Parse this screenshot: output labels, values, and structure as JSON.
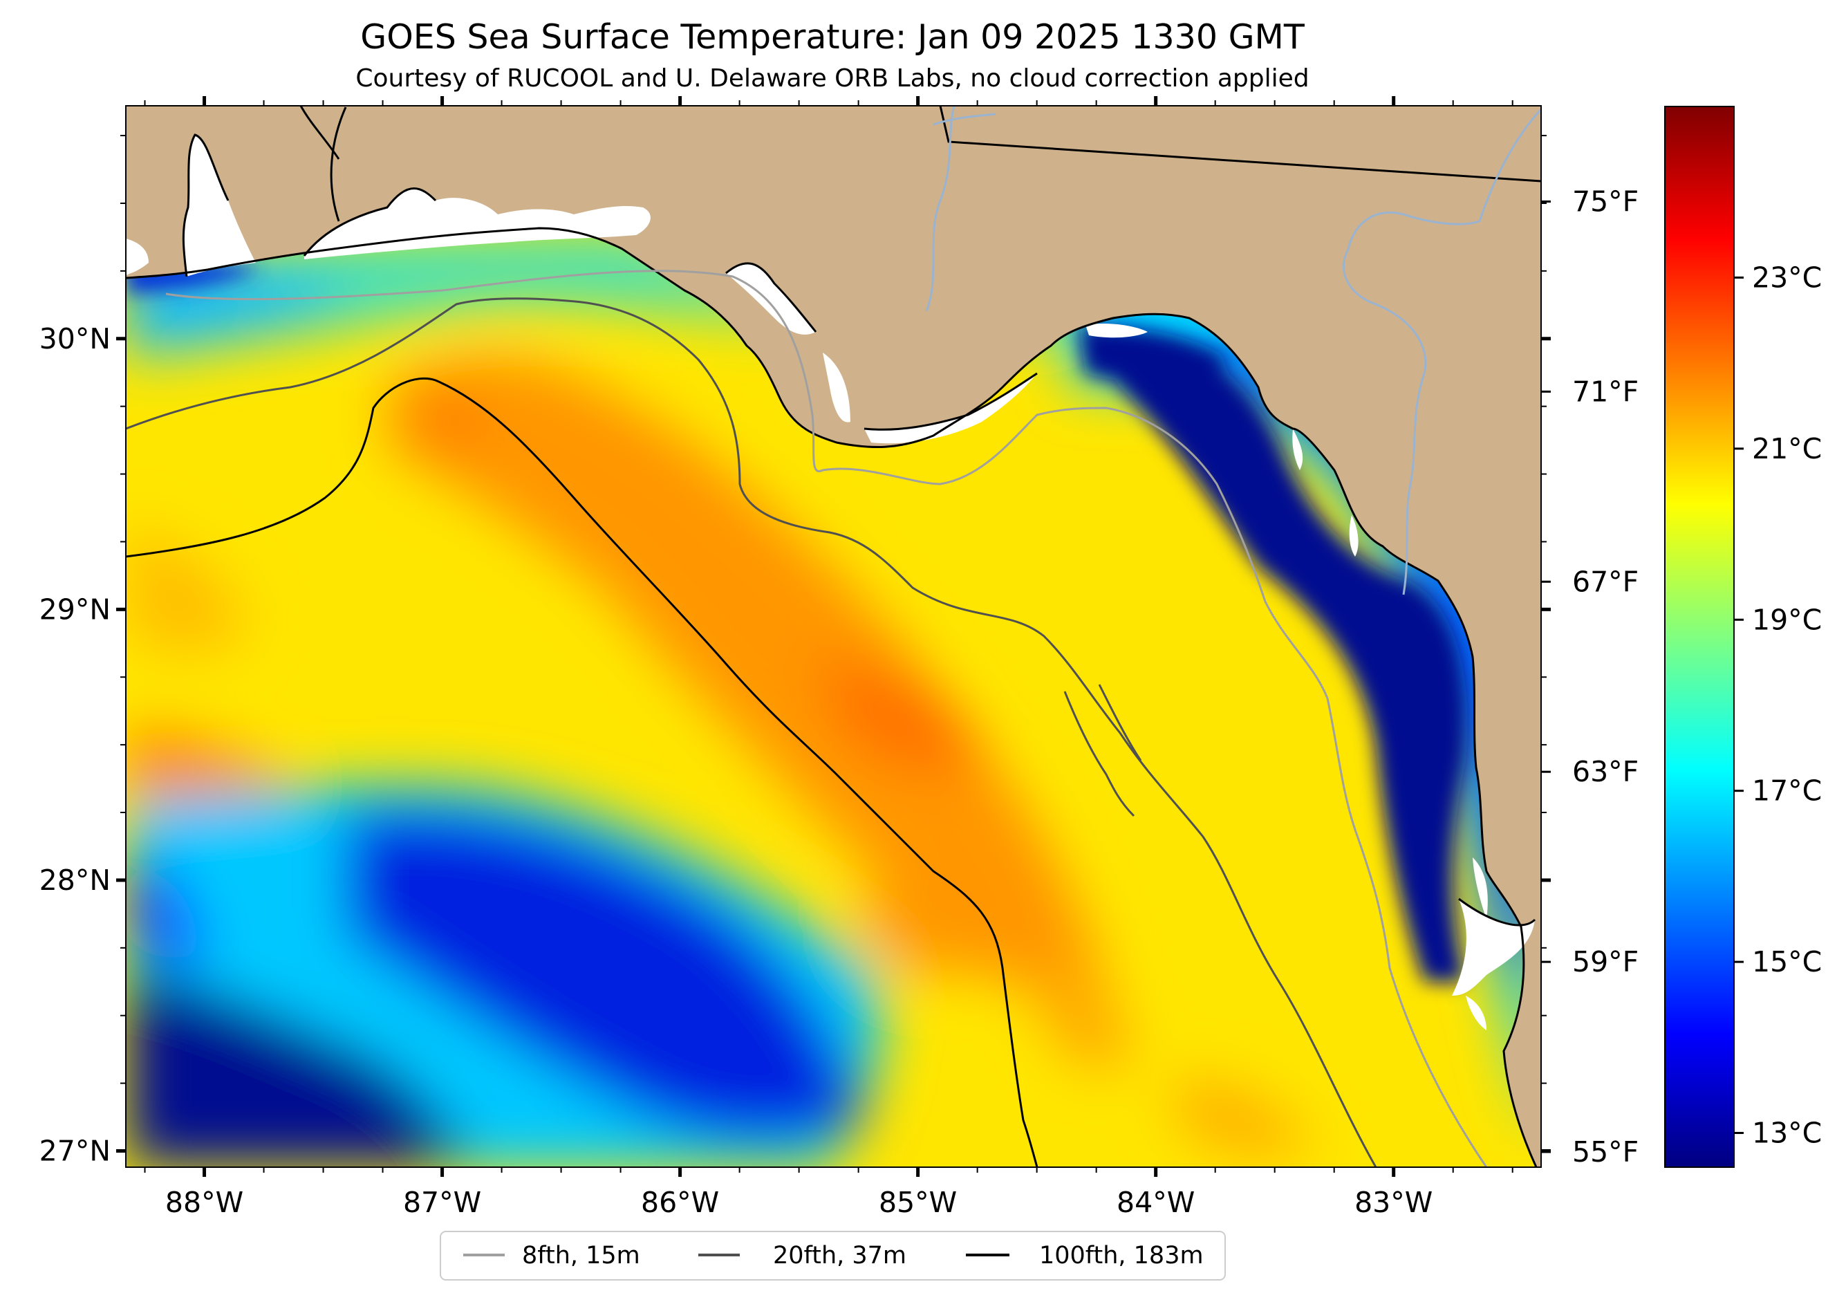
{
  "title": "GOES Sea Surface Temperature: Jan 09 2025 1330 GMT",
  "subtitle": "Courtesy of RUCOOL and U. Delaware ORB Labs, no cloud correction applied",
  "map": {
    "lon_range": [
      -88.33,
      -82.38
    ],
    "lat_range": [
      26.94,
      30.86
    ],
    "lon_ticks": [
      {
        "value": -88,
        "label": "88°W"
      },
      {
        "value": -87,
        "label": "87°W"
      },
      {
        "value": -86,
        "label": "86°W"
      },
      {
        "value": -85,
        "label": "85°W"
      },
      {
        "value": -84,
        "label": "84°W"
      },
      {
        "value": -83,
        "label": "83°W"
      }
    ],
    "lat_ticks": [
      {
        "value": 30,
        "label": "30°N"
      },
      {
        "value": 29,
        "label": "29°N"
      },
      {
        "value": 28,
        "label": "28°N"
      },
      {
        "value": 27,
        "label": "27°N"
      }
    ],
    "fahrenheit_ticks": [
      {
        "value": 75,
        "label": "75°F"
      },
      {
        "value": 71,
        "label": "71°F"
      },
      {
        "value": 67,
        "label": "67°F"
      },
      {
        "value": 63,
        "label": "63°F"
      },
      {
        "value": 59,
        "label": "59°F"
      },
      {
        "value": 55,
        "label": "55°F"
      }
    ],
    "land_color": "#cfb28c",
    "cloud_color": "#ffffff"
  },
  "colorbar": {
    "range_c": [
      12.6,
      25.0
    ],
    "ticks": [
      {
        "value": 23,
        "label": "23°C"
      },
      {
        "value": 21,
        "label": "21°C"
      },
      {
        "value": 19,
        "label": "19°C"
      },
      {
        "value": 17,
        "label": "17°C"
      },
      {
        "value": 15,
        "label": "15°C"
      },
      {
        "value": 13,
        "label": "13°C"
      }
    ],
    "colormap": [
      "#000080",
      "#0000ff",
      "#0080ff",
      "#00ffff",
      "#80ff80",
      "#ffff00",
      "#ff8000",
      "#ff0000",
      "#800000"
    ]
  },
  "legend": {
    "items": [
      {
        "label": "8fth, 15m",
        "color": "#a0a0a0"
      },
      {
        "label": "20fth, 37m",
        "color": "#505050"
      },
      {
        "label": "100fth, 183m",
        "color": "#000000"
      }
    ]
  }
}
